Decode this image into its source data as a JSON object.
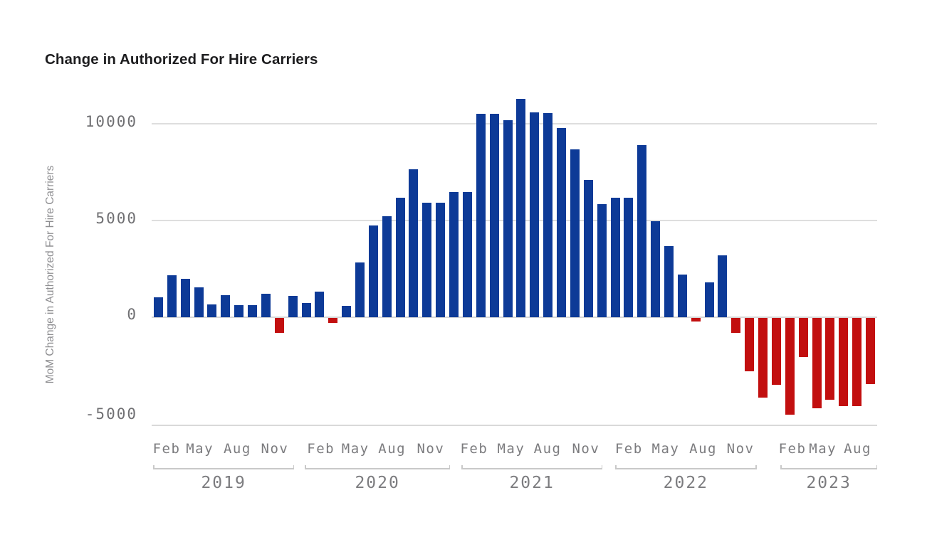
{
  "title": "Change in Authorized For Hire Carriers",
  "chart_data": {
    "type": "bar",
    "title": "Change in Authorized For Hire Carriers",
    "ylabel": "MoM Change in Authorized For Hire Carriers",
    "xlabel": "",
    "grid": "horizontal",
    "legend": "none",
    "ylim": [
      -5600,
      11500
    ],
    "y_ticks": [
      "10000",
      "5000",
      "0",
      "-5000"
    ],
    "y_tick_values": [
      10000,
      5000,
      0,
      -5000
    ],
    "colors": {
      "positive_bar": "#0d3a97",
      "negative_bar": "#c20f0f",
      "gridline": "#dedede",
      "tick_text": "#6f6f72",
      "axis_text": "#7c7c7f",
      "title_text": "#1d1d1f"
    },
    "x": [
      "Feb 2019",
      "Mar 2019",
      "Apr 2019",
      "May 2019",
      "Jun 2019",
      "Jul 2019",
      "Aug 2019",
      "Sep 2019",
      "Oct 2019",
      "Nov 2019",
      "Dec 2019",
      "Jan 2020",
      "Feb 2020",
      "Mar 2020",
      "Apr 2020",
      "May 2020",
      "Jun 2020",
      "Jul 2020",
      "Aug 2020",
      "Sep 2020",
      "Oct 2020",
      "Nov 2020",
      "Dec 2020",
      "Jan 2021",
      "Feb 2021",
      "Mar 2021",
      "Apr 2021",
      "May 2021",
      "Jun 2021",
      "Jul 2021",
      "Aug 2021",
      "Sep 2021",
      "Oct 2021",
      "Nov 2021",
      "Dec 2021",
      "Jan 2022",
      "Feb 2022",
      "Mar 2022",
      "Apr 2022",
      "May 2022",
      "Jun 2022",
      "Jul 2022",
      "Aug 2022",
      "Sep 2022",
      "Oct 2022",
      "Nov 2022",
      "Dec 2022",
      "Jan 2023",
      "Feb 2023",
      "Mar 2023",
      "Apr 2023",
      "May 2023",
      "Jun 2023",
      "Jul 2023"
    ],
    "values": [
      1030,
      2180,
      2000,
      1550,
      650,
      1160,
      610,
      640,
      1220,
      -790,
      1120,
      730,
      1340,
      -270,
      590,
      2820,
      4750,
      5220,
      6180,
      7680,
      5930,
      5950,
      6500,
      6500,
      10520,
      10520,
      10220,
      11300,
      10620,
      10580,
      9790,
      8700,
      7100,
      5860,
      6200,
      6200,
      8930,
      4990,
      3670,
      2220,
      -220,
      1820,
      3210,
      -780,
      -2770,
      -4150,
      -3480,
      -5020,
      -2050,
      -4700,
      -4270,
      -4570,
      -4570,
      -3430
    ],
    "x_axis_years": [
      {
        "label": "2019",
        "months": [
          "Feb",
          "May",
          "Aug",
          "Nov"
        ]
      },
      {
        "label": "2020",
        "months": [
          "Feb",
          "May",
          "Aug",
          "Nov"
        ]
      },
      {
        "label": "2021",
        "months": [
          "Feb",
          "May",
          "Aug",
          "Nov"
        ]
      },
      {
        "label": "2022",
        "months": [
          "Feb",
          "May",
          "Aug",
          "Nov"
        ]
      },
      {
        "label": "2023",
        "months": [
          "Feb",
          "May",
          "Aug"
        ]
      }
    ]
  }
}
